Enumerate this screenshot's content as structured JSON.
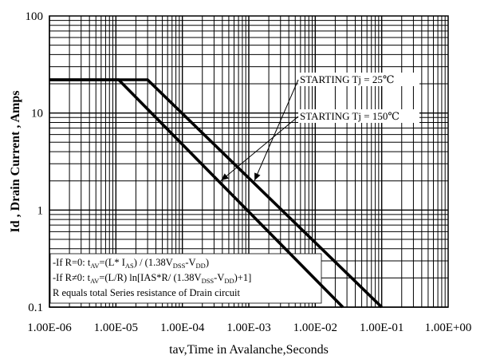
{
  "chart_data": {
    "type": "line",
    "title": "",
    "xlabel": "tav,Time in Avalanche,Seconds",
    "ylabel": "Id , Drain Current , Amps",
    "x_scale": "log",
    "y_scale": "log",
    "xlim": [
      1e-06,
      1
    ],
    "ylim": [
      0.1,
      100
    ],
    "x_ticks": [
      {
        "value": 1e-06,
        "label": "1.00E-06"
      },
      {
        "value": 1e-05,
        "label": "1.00E-05"
      },
      {
        "value": 0.0001,
        "label": "1.00E-04"
      },
      {
        "value": 0.001,
        "label": "1.00E-03"
      },
      {
        "value": 0.01,
        "label": "1.00E-02"
      },
      {
        "value": 0.1,
        "label": "1.00E-01"
      },
      {
        "value": 1,
        "label": "1.00E+00"
      }
    ],
    "y_ticks": [
      {
        "value": 0.1,
        "label": "0.1"
      },
      {
        "value": 1,
        "label": "1"
      },
      {
        "value": 10,
        "label": "10"
      },
      {
        "value": 100,
        "label": "100"
      }
    ],
    "grid": true,
    "series": [
      {
        "x": [
          1e-06,
          3e-05,
          0.1
        ],
        "y": [
          22,
          22,
          0.1
        ]
      },
      {
        "x": [
          1e-06,
          1.1e-05,
          0.026
        ],
        "y": [
          22,
          22,
          0.1
        ]
      }
    ],
    "annotations": [
      {
        "text": "STARTING Tj = 25℃",
        "x": 0.0004,
        "y": 5.5
      },
      {
        "text": "STARTING Tj = 150℃",
        "x": 0.00024,
        "y": 1.8
      }
    ],
    "notes": [
      {
        "parts": [
          "-If R=0: t",
          "AV",
          "=(L* I",
          "AS",
          ") / (1.38V",
          "DSS",
          "-V",
          "DD",
          ")"
        ]
      },
      {
        "parts": [
          "-If R≠0: t",
          "AV",
          "=(L/R) ln[IAS*R/ (1.38V",
          "DSS",
          "-V",
          "DD",
          ")+1]"
        ]
      },
      {
        "parts": [
          "R equals total Series resistance of Drain circuit"
        ]
      }
    ]
  }
}
